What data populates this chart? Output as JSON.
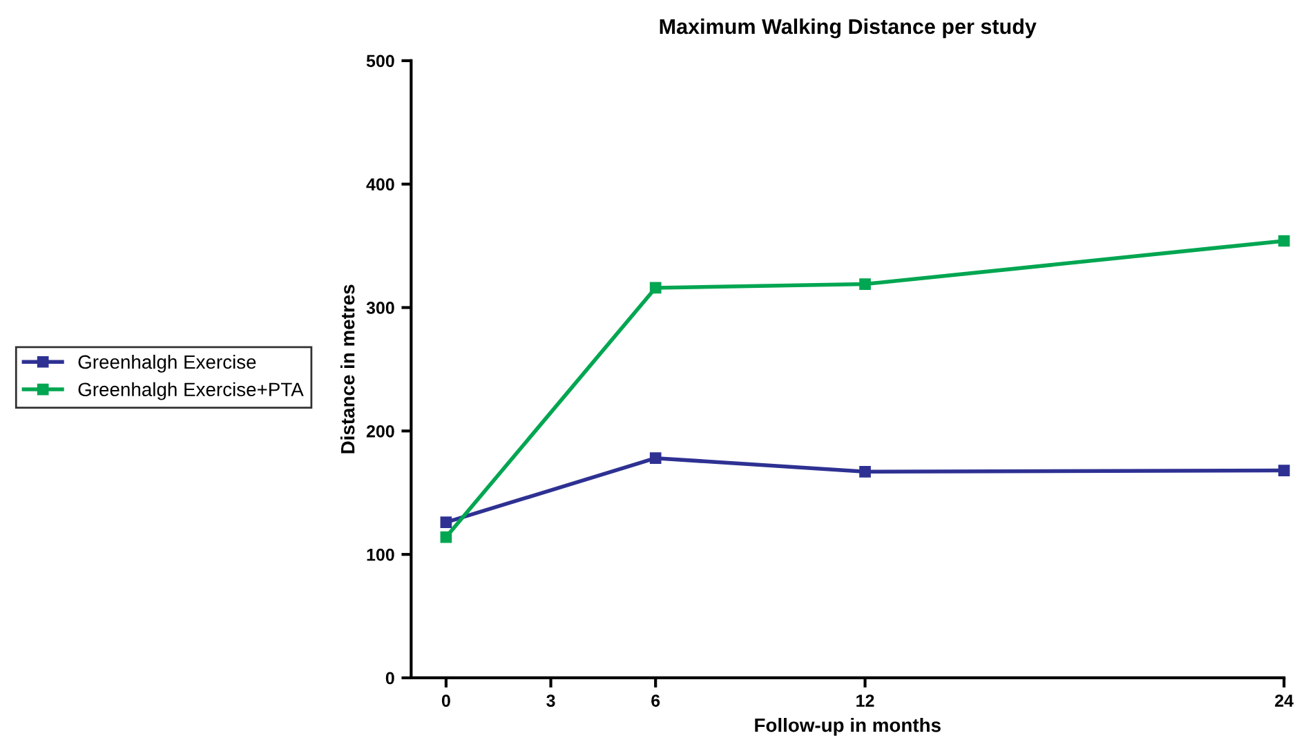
{
  "chart_data": {
    "type": "line",
    "title": "Maximum Walking Distance per study",
    "xlabel": "Follow-up in months",
    "ylabel": "Distance in metres",
    "x": [
      0,
      6,
      12,
      24
    ],
    "series": [
      {
        "name": "Greenhalgh Exercise",
        "color": "#2e3192",
        "values": [
          126,
          178,
          167,
          168
        ]
      },
      {
        "name": "Greenhalgh Exercise+PTA",
        "color": "#00a651",
        "values": [
          114,
          316,
          319,
          354
        ]
      }
    ],
    "xlim": [
      -1,
      24
    ],
    "xticks": [
      0,
      3,
      6,
      12,
      24
    ],
    "ylim": [
      0,
      500
    ],
    "yticks": [
      0,
      100,
      200,
      300,
      400,
      500
    ],
    "grid": false,
    "legend": "left",
    "marker": "square",
    "line_style": "solid"
  }
}
